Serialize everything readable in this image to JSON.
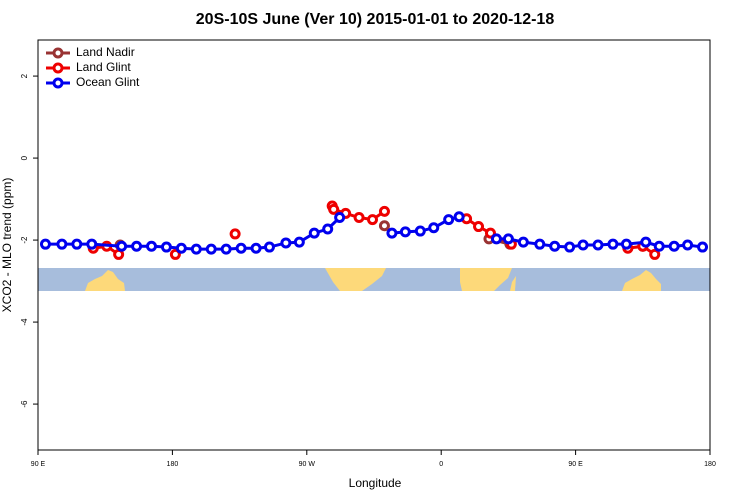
{
  "chart_data": {
    "type": "line",
    "title": "20S-10S June (Ver 10)   2015-01-01 to 2020-12-18",
    "x_label": "Longitude",
    "y_label": "XCO2 - MLO trend (ppm)",
    "xlim": [
      90,
      540
    ],
    "ylim": [
      -7.12,
      2.88
    ],
    "xticks": [
      {
        "value": 90,
        "label": "90 E"
      },
      180,
      {
        "value": 270,
        "label": "90 W"
      },
      {
        "value": 360,
        "label": "0"
      },
      {
        "value": 450,
        "label": "90 E"
      },
      {
        "value": 540,
        "label": "180"
      }
    ],
    "yticks": [
      -6,
      -4,
      -2,
      0,
      2
    ],
    "legend": "topleft",
    "series": [
      {
        "name": "Land Nadir",
        "color": "#993333",
        "x": [
          145,
          null,
          322,
          null,
          392,
          406,
          null,
          495
        ],
        "values": [
          -2.12,
          null,
          -1.65,
          null,
          -1.97,
          -2.1,
          null,
          -2.15
        ]
      },
      {
        "name": "Land Glint",
        "color": "#ee0000",
        "x": [
          127,
          136,
          144,
          null,
          182,
          null,
          222,
          null,
          287,
          288,
          296,
          305,
          314,
          322,
          null,
          377,
          385,
          393,
          407,
          null,
          485,
          495,
          503
        ],
        "values": [
          -2.2,
          -2.15,
          -2.35,
          null,
          -2.35,
          null,
          -1.85,
          null,
          -1.17,
          -1.25,
          -1.35,
          -1.45,
          -1.5,
          -1.3,
          null,
          -1.48,
          -1.67,
          -1.83,
          -2.1,
          null,
          -2.2,
          -2.15,
          -2.35
        ]
      },
      {
        "name": "Ocean Glint",
        "color": "#0000ee",
        "x": [
          95,
          106,
          116,
          126,
          146,
          156,
          166,
          176,
          186,
          196,
          206,
          216,
          226,
          236,
          245,
          256,
          265,
          275,
          284,
          292,
          null,
          327,
          336,
          346,
          355,
          365,
          372,
          null,
          397,
          405,
          415,
          426,
          436,
          446,
          455,
          465,
          475,
          484,
          497,
          506,
          516,
          525,
          535
        ],
        "values": [
          -2.1,
          -2.1,
          -2.1,
          -2.1,
          -2.15,
          -2.15,
          -2.15,
          -2.17,
          -2.2,
          -2.22,
          -2.22,
          -2.22,
          -2.2,
          -2.2,
          -2.17,
          -2.07,
          -2.05,
          -1.83,
          -1.73,
          -1.45,
          null,
          -1.83,
          -1.8,
          -1.78,
          -1.7,
          -1.5,
          -1.43,
          null,
          -1.97,
          -1.97,
          -2.05,
          -2.1,
          -2.15,
          -2.17,
          -2.12,
          -2.12,
          -2.1,
          -2.1,
          -2.05,
          -2.15,
          -2.15,
          -2.12,
          -2.17
        ]
      }
    ]
  }
}
